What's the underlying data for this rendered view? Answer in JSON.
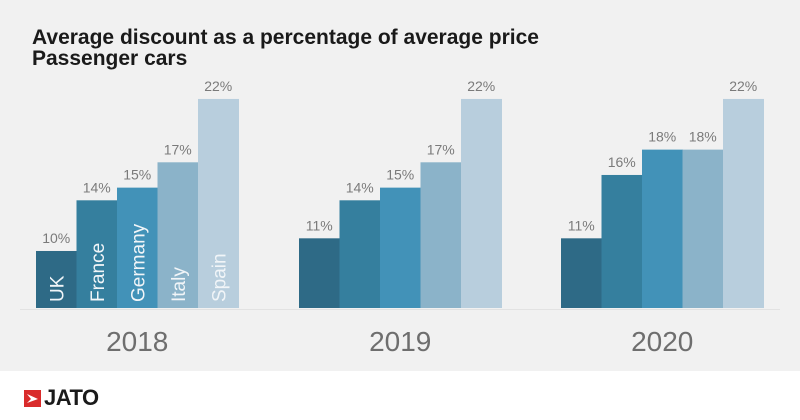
{
  "chart_data": {
    "type": "bar",
    "title": "Average discount as a percentage of average price",
    "subtitle": "Passenger cars",
    "xlabel": "",
    "ylabel": "",
    "categories": [
      "2018",
      "2019",
      "2020"
    ],
    "series": [
      {
        "name": "UK",
        "values": [
          10,
          11,
          11
        ],
        "color": "#2e6a86"
      },
      {
        "name": "France",
        "values": [
          14,
          14,
          16
        ],
        "color": "#357f9e"
      },
      {
        "name": "Germany",
        "values": [
          15,
          15,
          18
        ],
        "color": "#4292b8"
      },
      {
        "name": "Italy",
        "values": [
          17,
          17,
          18
        ],
        "color": "#8bb3c9"
      },
      {
        "name": "Spain",
        "values": [
          22,
          22,
          22
        ],
        "color": "#b8cedd"
      }
    ],
    "value_suffix": "%",
    "series_labels_inside_first_group": true,
    "grid": false,
    "legend": "none"
  },
  "brand": {
    "name": "JATO",
    "color": "#d92b2b"
  }
}
